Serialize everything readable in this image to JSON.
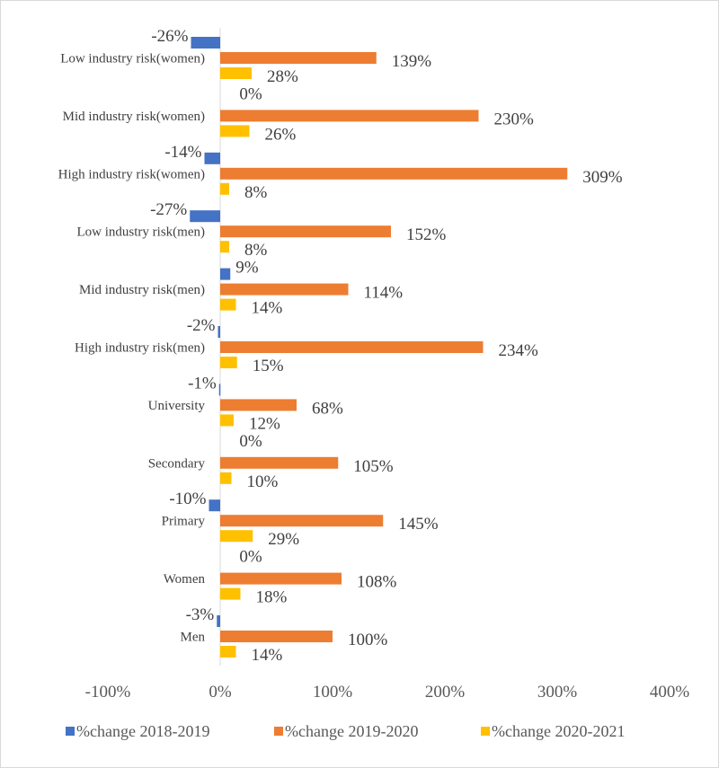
{
  "chart_data": {
    "type": "bar",
    "orientation": "horizontal",
    "categories": [
      "Low industry risk(women)",
      "Mid industry risk(women)",
      "High industry risk(women)",
      "Low industry risk(men)",
      "Mid industry risk(men)",
      "High industry risk(men)",
      "University",
      "Secondary",
      "Primary",
      "Women",
      "Men"
    ],
    "series": [
      {
        "name": "%change 2018-2019",
        "color": "#4472C4",
        "values": [
          -26,
          0,
          -14,
          -27,
          9,
          -2,
          -1,
          0,
          -10,
          0,
          -3
        ],
        "labels": [
          "-26%",
          "0%",
          "-14%",
          "-27%",
          "9%",
          "-2%",
          "-1%",
          "0%",
          "-10%",
          "0%",
          "-3%"
        ]
      },
      {
        "name": "%change 2019-2020",
        "color": "#ED7D31",
        "values": [
          139,
          230,
          309,
          152,
          114,
          234,
          68,
          105,
          145,
          108,
          100
        ],
        "labels": [
          "139%",
          "230%",
          "309%",
          "152%",
          "114%",
          "234%",
          "68%",
          "105%",
          "145%",
          "108%",
          "100%"
        ]
      },
      {
        "name": "%change 2020-2021",
        "color": "#FFC000",
        "values": [
          28,
          26,
          8,
          8,
          14,
          15,
          12,
          10,
          29,
          18,
          14
        ],
        "labels": [
          "28%",
          "26%",
          "8%",
          "8%",
          "14%",
          "15%",
          "12%",
          "10%",
          "29%",
          "18%",
          "14%"
        ]
      }
    ],
    "xlim": [
      -100,
      400
    ],
    "xticks": [
      -100,
      0,
      100,
      200,
      300,
      400
    ],
    "xtick_labels": [
      "-100%",
      "0%",
      "100%",
      "200%",
      "300%",
      "400%"
    ],
    "title": "",
    "xlabel": "",
    "ylabel": "",
    "grid": false,
    "legend_position": "bottom"
  }
}
